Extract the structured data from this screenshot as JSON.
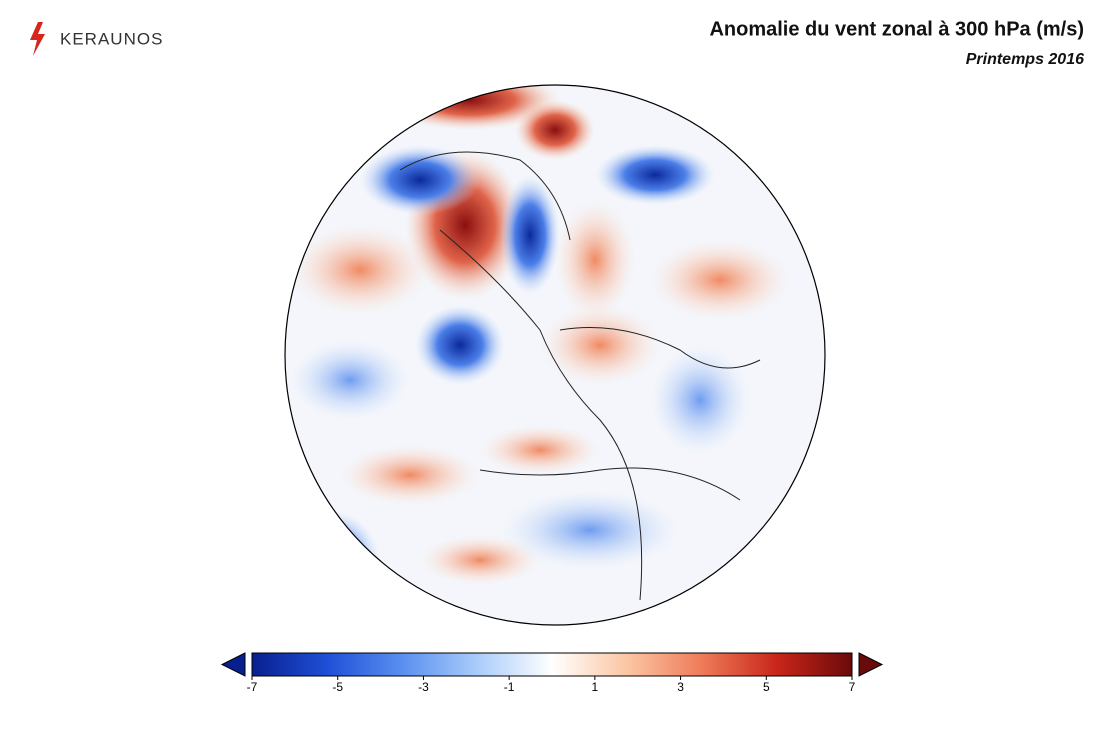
{
  "header": {
    "logo": "KERAUNOS",
    "title": "Anomalie du vent zonal à 300 hPa (m/s)",
    "subtitle": "Printemps 2016"
  },
  "colorbar": {
    "range": [
      -7,
      7
    ],
    "ticks": [
      -7,
      -5,
      -3,
      -1,
      1,
      3,
      5,
      7
    ],
    "colors": [
      "#08208f",
      "#1f4fd6",
      "#5a8ff0",
      "#a9ccfa",
      "#ffffff",
      "#fbc6a3",
      "#ee7b58",
      "#c8261a",
      "#6b0a0a"
    ]
  }
}
